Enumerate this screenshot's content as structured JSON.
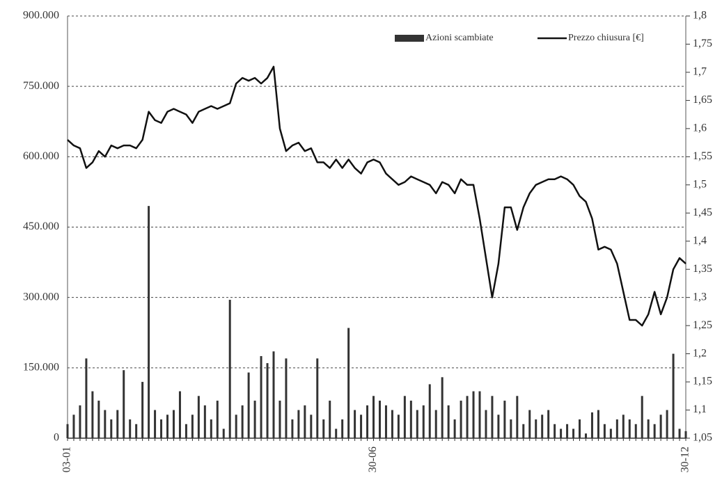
{
  "chart_data": {
    "type": "combo",
    "categories": [
      "03-01",
      null,
      null,
      null,
      null,
      null,
      null,
      null,
      null,
      null,
      null,
      null,
      null,
      null,
      null,
      null,
      null,
      null,
      null,
      null,
      null,
      null,
      null,
      null,
      null,
      null,
      null,
      null,
      null,
      null,
      null,
      null,
      null,
      null,
      null,
      null,
      null,
      null,
      null,
      null,
      null,
      null,
      null,
      null,
      null,
      null,
      null,
      null,
      null,
      "30-06",
      null,
      null,
      null,
      null,
      null,
      null,
      null,
      null,
      null,
      null,
      null,
      null,
      null,
      null,
      null,
      null,
      null,
      null,
      null,
      null,
      null,
      null,
      null,
      null,
      null,
      null,
      null,
      null,
      null,
      null,
      null,
      null,
      null,
      null,
      null,
      null,
      null,
      null,
      null,
      null,
      null,
      null,
      null,
      null,
      null,
      null,
      null,
      null,
      null,
      "30-12"
    ],
    "series": [
      {
        "name": "Azioni scambiate",
        "type": "bar",
        "color": "#333333",
        "values": [
          30000,
          50000,
          70000,
          170000,
          100000,
          80000,
          60000,
          40000,
          60000,
          145000,
          40000,
          30000,
          120000,
          495000,
          60000,
          40000,
          50000,
          60000,
          100000,
          30000,
          50000,
          90000,
          70000,
          40000,
          80000,
          20000,
          295000,
          50000,
          70000,
          140000,
          80000,
          175000,
          160000,
          185000,
          80000,
          170000,
          40000,
          60000,
          70000,
          50000,
          170000,
          40000,
          80000,
          20000,
          40000,
          235000,
          60000,
          50000,
          70000,
          90000,
          80000,
          70000,
          60000,
          50000,
          90000,
          80000,
          60000,
          70000,
          115000,
          60000,
          130000,
          70000,
          40000,
          80000,
          90000,
          100000,
          100000,
          60000,
          90000,
          50000,
          80000,
          40000,
          90000,
          30000,
          60000,
          40000,
          50000,
          60000,
          30000,
          20000,
          30000,
          20000,
          40000,
          10000,
          55000,
          60000,
          30000,
          20000,
          40000,
          50000,
          40000,
          30000,
          90000,
          40000,
          30000,
          50000,
          60000,
          180000,
          20000,
          15000
        ]
      },
      {
        "name": "Prezzo chiusura [€]",
        "type": "line",
        "axis": "y2",
        "color": "#111111",
        "values": [
          1.58,
          1.57,
          1.565,
          1.53,
          1.54,
          1.56,
          1.55,
          1.57,
          1.565,
          1.57,
          1.57,
          1.565,
          1.58,
          1.63,
          1.615,
          1.61,
          1.63,
          1.635,
          1.63,
          1.625,
          1.61,
          1.63,
          1.635,
          1.64,
          1.635,
          1.64,
          1.645,
          1.68,
          1.69,
          1.685,
          1.69,
          1.68,
          1.69,
          1.71,
          1.6,
          1.56,
          1.57,
          1.575,
          1.56,
          1.565,
          1.54,
          1.54,
          1.53,
          1.545,
          1.53,
          1.545,
          1.53,
          1.52,
          1.54,
          1.545,
          1.54,
          1.52,
          1.51,
          1.5,
          1.505,
          1.515,
          1.51,
          1.505,
          1.5,
          1.485,
          1.505,
          1.5,
          1.485,
          1.51,
          1.5,
          1.5,
          1.44,
          1.37,
          1.3,
          1.36,
          1.46,
          1.46,
          1.42,
          1.46,
          1.485,
          1.5,
          1.505,
          1.51,
          1.51,
          1.515,
          1.51,
          1.5,
          1.48,
          1.47,
          1.44,
          1.385,
          1.39,
          1.385,
          1.36,
          1.31,
          1.26,
          1.26,
          1.25,
          1.27,
          1.31,
          1.27,
          1.3,
          1.35,
          1.37,
          1.36
        ]
      }
    ],
    "ylim": [
      0,
      900000
    ],
    "yticks": [
      {
        "value": 0,
        "label": "0"
      },
      {
        "value": 150000,
        "label": "150.000"
      },
      {
        "value": 300000,
        "label": "300.000"
      },
      {
        "value": 450000,
        "label": "450.000"
      },
      {
        "value": 600000,
        "label": "600.000"
      },
      {
        "value": 750000,
        "label": "750.000"
      },
      {
        "value": 900000,
        "label": "900.000"
      }
    ],
    "y2lim": [
      1.05,
      1.8
    ],
    "y2ticks": [
      {
        "value": 1.05,
        "label": "1,05"
      },
      {
        "value": 1.1,
        "label": "1,1"
      },
      {
        "value": 1.15,
        "label": "1,15"
      },
      {
        "value": 1.2,
        "label": "1,2"
      },
      {
        "value": 1.25,
        "label": "1,25"
      },
      {
        "value": 1.3,
        "label": "1,3"
      },
      {
        "value": 1.35,
        "label": "1,35"
      },
      {
        "value": 1.4,
        "label": "1,4"
      },
      {
        "value": 1.45,
        "label": "1,45"
      },
      {
        "value": 1.5,
        "label": "1,5"
      },
      {
        "value": 1.55,
        "label": "1,55"
      },
      {
        "value": 1.6,
        "label": "1,6"
      },
      {
        "value": 1.65,
        "label": "1,65"
      },
      {
        "value": 1.7,
        "label": "1,7"
      },
      {
        "value": 1.75,
        "label": "1,75"
      },
      {
        "value": 1.8,
        "label": "1,8"
      }
    ],
    "grid": true,
    "legend": "top-right"
  }
}
